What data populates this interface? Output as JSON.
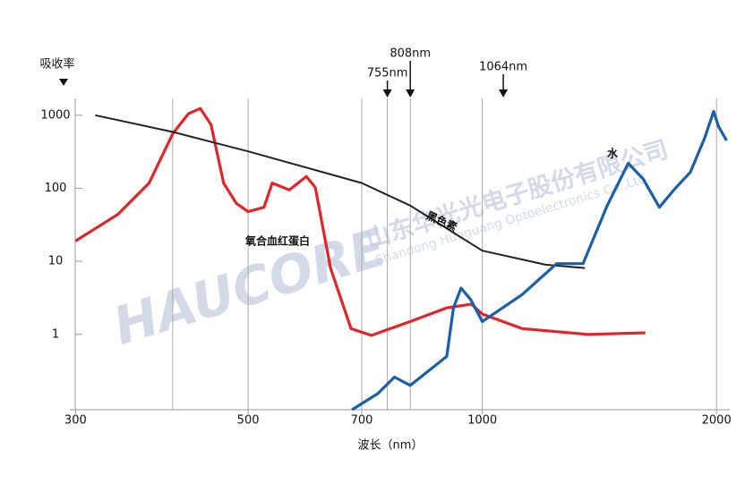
{
  "chart_data": {
    "type": "line",
    "y_label": "吸收率",
    "x_label": "波长（nm）",
    "x_scale": "log",
    "y_scale": "log",
    "xlim": [
      295,
      2080
    ],
    "ylim": [
      0.093,
      1700
    ],
    "xticks": [
      300,
      500,
      700,
      1000,
      2000
    ],
    "yticks": [
      1000,
      100,
      10,
      1
    ],
    "vlines": [
      400,
      500,
      700,
      755,
      808,
      1000,
      2000
    ],
    "markers": [
      {
        "value": 755,
        "label": "755nm"
      },
      {
        "value": 808,
        "label": "808nm"
      },
      {
        "value": 1064,
        "label": "1064nm"
      }
    ],
    "series": [
      {
        "name": "氧合血红蛋白",
        "color": "#e0262b",
        "x": [
          300,
          340,
          373,
          400,
          419,
          434,
          448,
          465,
          483,
          500,
          524,
          537,
          565,
          594,
          610,
          638,
          678,
          720,
          808,
          899,
          968,
          1000,
          1125,
          1367,
          1620
        ],
        "values": [
          19,
          44,
          118,
          560,
          1050,
          1240,
          740,
          118,
          62,
          48,
          55,
          118,
          95,
          145,
          103,
          8.1,
          1.2,
          0.97,
          1.5,
          2.3,
          2.6,
          1.9,
          1.2,
          1.0,
          1.05
        ]
      },
      {
        "name": "黑色素",
        "color": "#222222",
        "x": [
          318,
          400,
          500,
          700,
          808,
          1000,
          1206,
          1355
        ],
        "values": [
          1000,
          590,
          320,
          118,
          58,
          14,
          9,
          8.1
        ]
      },
      {
        "name": "水",
        "color": "#1a5fa8",
        "x": [
          680,
          734,
          771,
          808,
          900,
          918,
          939,
          966,
          1000,
          1125,
          1246,
          1347,
          1447,
          1540,
          1609,
          1689,
          1770,
          1850,
          1931,
          1983,
          2012,
          2060
        ],
        "values": [
          0.093,
          0.155,
          0.26,
          0.2,
          0.5,
          2.3,
          4.3,
          3.0,
          1.5,
          3.5,
          9.3,
          9.3,
          58,
          220,
          135,
          55,
          100,
          165,
          490,
          1130,
          700,
          450
        ]
      }
    ],
    "watermark": [
      "HAUCORE",
      "山东华光光电子股份有限公司",
      "Shandong Huaguang Optoelectronics Co.,Ltd."
    ]
  }
}
